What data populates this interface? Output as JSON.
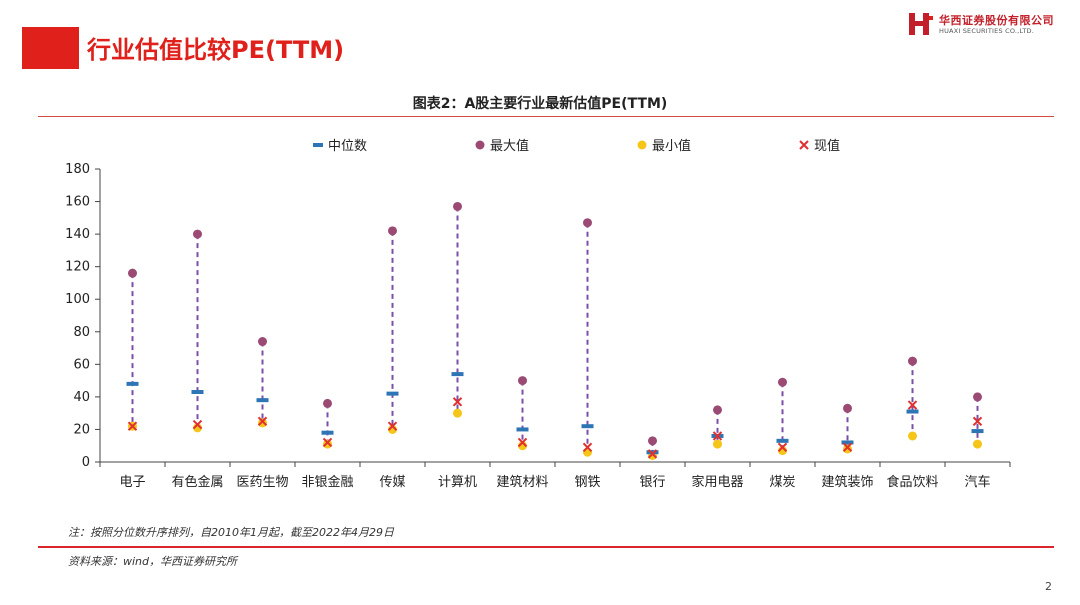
{
  "header": {
    "page_title": "行业估值比较PE(TTM)",
    "logo_cn": "华西证券股份有限公司",
    "logo_en": "HUAXI SECURITIES CO.,LTD.",
    "logo_icon": "huaxi-h-logo-icon"
  },
  "figure_title": "图表2：A股主要行业最新估值PE(TTM)",
  "note": "注：按照分位数升序排列，自2010年1月起，截至2022年4月29日",
  "source": "资料来源：wind，华西证券研究所",
  "page_number": "2",
  "colors": {
    "brand_red": "#e0201b",
    "median": "#2e75b6",
    "max": "#9b4a74",
    "min": "#f5c518",
    "current": "#e03030",
    "range_line": "#7b4fa8"
  },
  "chart_data": {
    "type": "scatter",
    "categories": [
      "电子",
      "有色金属",
      "医药生物",
      "非银金融",
      "传媒",
      "计算机",
      "建筑材料",
      "钢铁",
      "银行",
      "家用电器",
      "煤炭",
      "建筑装饰",
      "食品饮料",
      "汽车"
    ],
    "series": [
      {
        "name": "中位数",
        "marker": "dash",
        "values": [
          48,
          43,
          38,
          18,
          42,
          54,
          20,
          22,
          6,
          16,
          13,
          12,
          31,
          19
        ]
      },
      {
        "name": "最大值",
        "marker": "circle",
        "values": [
          116,
          140,
          74,
          36,
          142,
          157,
          50,
          147,
          13,
          32,
          49,
          33,
          62,
          40
        ]
      },
      {
        "name": "最小值",
        "marker": "circle",
        "values": [
          22,
          21,
          24,
          11,
          20,
          30,
          10,
          6,
          4,
          11,
          7,
          8,
          16,
          11
        ]
      },
      {
        "name": "现值",
        "marker": "x",
        "values": [
          22,
          23,
          25,
          12,
          22,
          37,
          12,
          9,
          5,
          16,
          9,
          9,
          35,
          25
        ]
      }
    ],
    "ylim": [
      0,
      180
    ],
    "yticks": [
      "0",
      "20",
      "40",
      "60",
      "80",
      "100",
      "120",
      "140",
      "160",
      "180"
    ],
    "legend_position": "top",
    "grid": false
  }
}
